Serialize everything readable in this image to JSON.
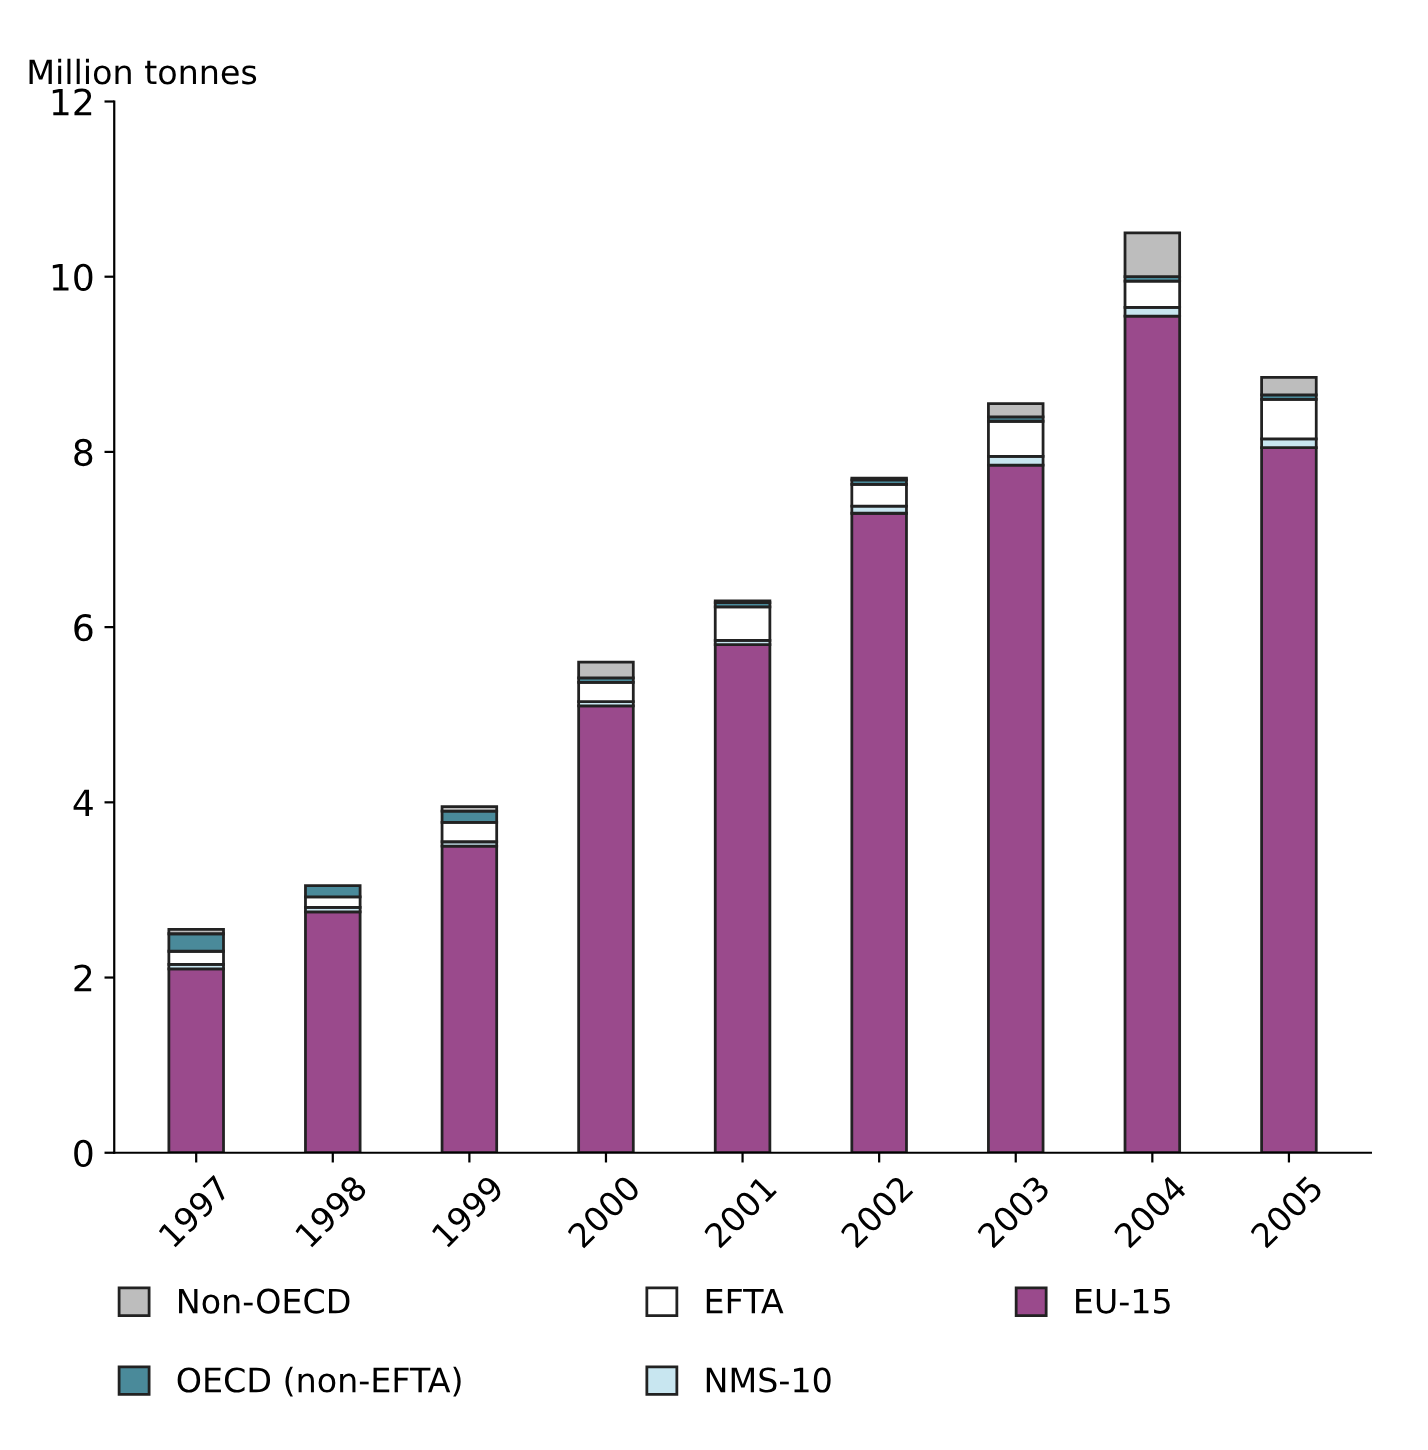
{
  "chart_data": {
    "type": "bar",
    "stacked": true,
    "ylabel": "Million tonnes",
    "categories": [
      "1997",
      "1998",
      "1999",
      "2000",
      "2001",
      "2002",
      "2003",
      "2004",
      "2005"
    ],
    "series": [
      {
        "name": "EU-15",
        "color": "#9a4a8c",
        "values": [
          2.1,
          2.75,
          3.5,
          5.1,
          5.8,
          7.3,
          7.85,
          9.55,
          8.05
        ]
      },
      {
        "name": "NMS-10",
        "color": "#c8e6f0",
        "values": [
          0.05,
          0.05,
          0.05,
          0.05,
          0.05,
          0.08,
          0.1,
          0.1,
          0.1
        ]
      },
      {
        "name": "EFTA",
        "color": "#ffffff",
        "values": [
          0.15,
          0.12,
          0.22,
          0.22,
          0.38,
          0.25,
          0.4,
          0.3,
          0.45
        ]
      },
      {
        "name": "OECD (non-EFTA)",
        "color": "#4a8a9a",
        "values": [
          0.2,
          0.13,
          0.13,
          0.05,
          0.05,
          0.05,
          0.05,
          0.05,
          0.05
        ]
      },
      {
        "name": "Non-OECD",
        "color": "#bdbdbd",
        "values": [
          0.05,
          null,
          0.05,
          0.18,
          0.02,
          0.02,
          0.15,
          0.5,
          0.2
        ]
      }
    ],
    "ylim": [
      0,
      12
    ],
    "yticks": [
      0,
      2,
      4,
      6,
      8,
      10,
      12
    ],
    "grid": false,
    "legend": "bottom"
  }
}
